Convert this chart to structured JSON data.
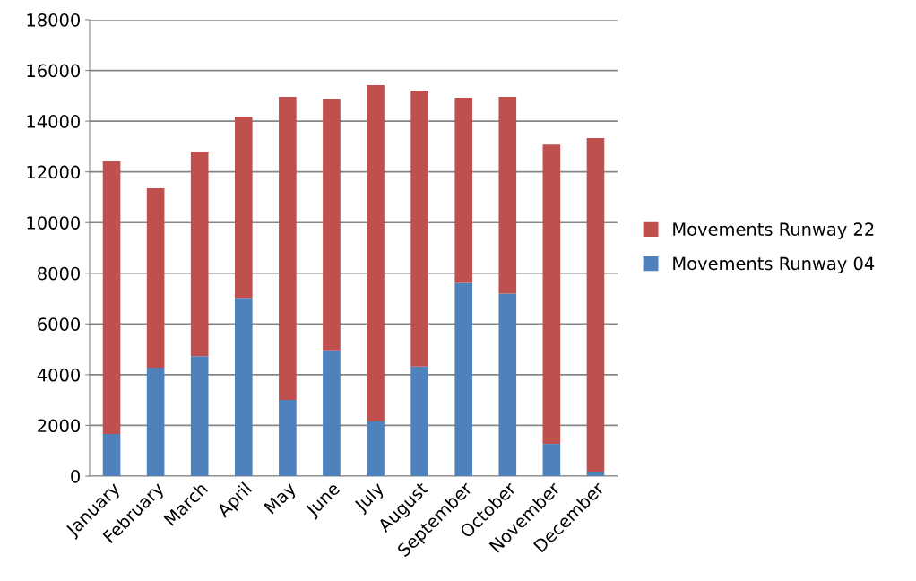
{
  "chart_data": {
    "type": "bar",
    "stacked": true,
    "categories": [
      "January",
      "February",
      "March",
      "April",
      "May",
      "June",
      "July",
      "August",
      "September",
      "October",
      "November",
      "December"
    ],
    "series": [
      {
        "name": "Movements Runway 04",
        "color": "#4f81bd",
        "values": [
          1660,
          4280,
          4730,
          7030,
          3010,
          4960,
          2160,
          4320,
          7620,
          7200,
          1270,
          180
        ]
      },
      {
        "name": "Movements Runway 22",
        "color": "#c0504d",
        "values": [
          10750,
          7070,
          8070,
          7150,
          11950,
          9930,
          13260,
          10880,
          7300,
          7760,
          11810,
          13150
        ]
      }
    ],
    "ylim": [
      0,
      18000
    ],
    "yticks": [
      0,
      2000,
      4000,
      6000,
      8000,
      10000,
      12000,
      14000,
      16000,
      18000
    ],
    "grid": "y",
    "legend": "right"
  }
}
